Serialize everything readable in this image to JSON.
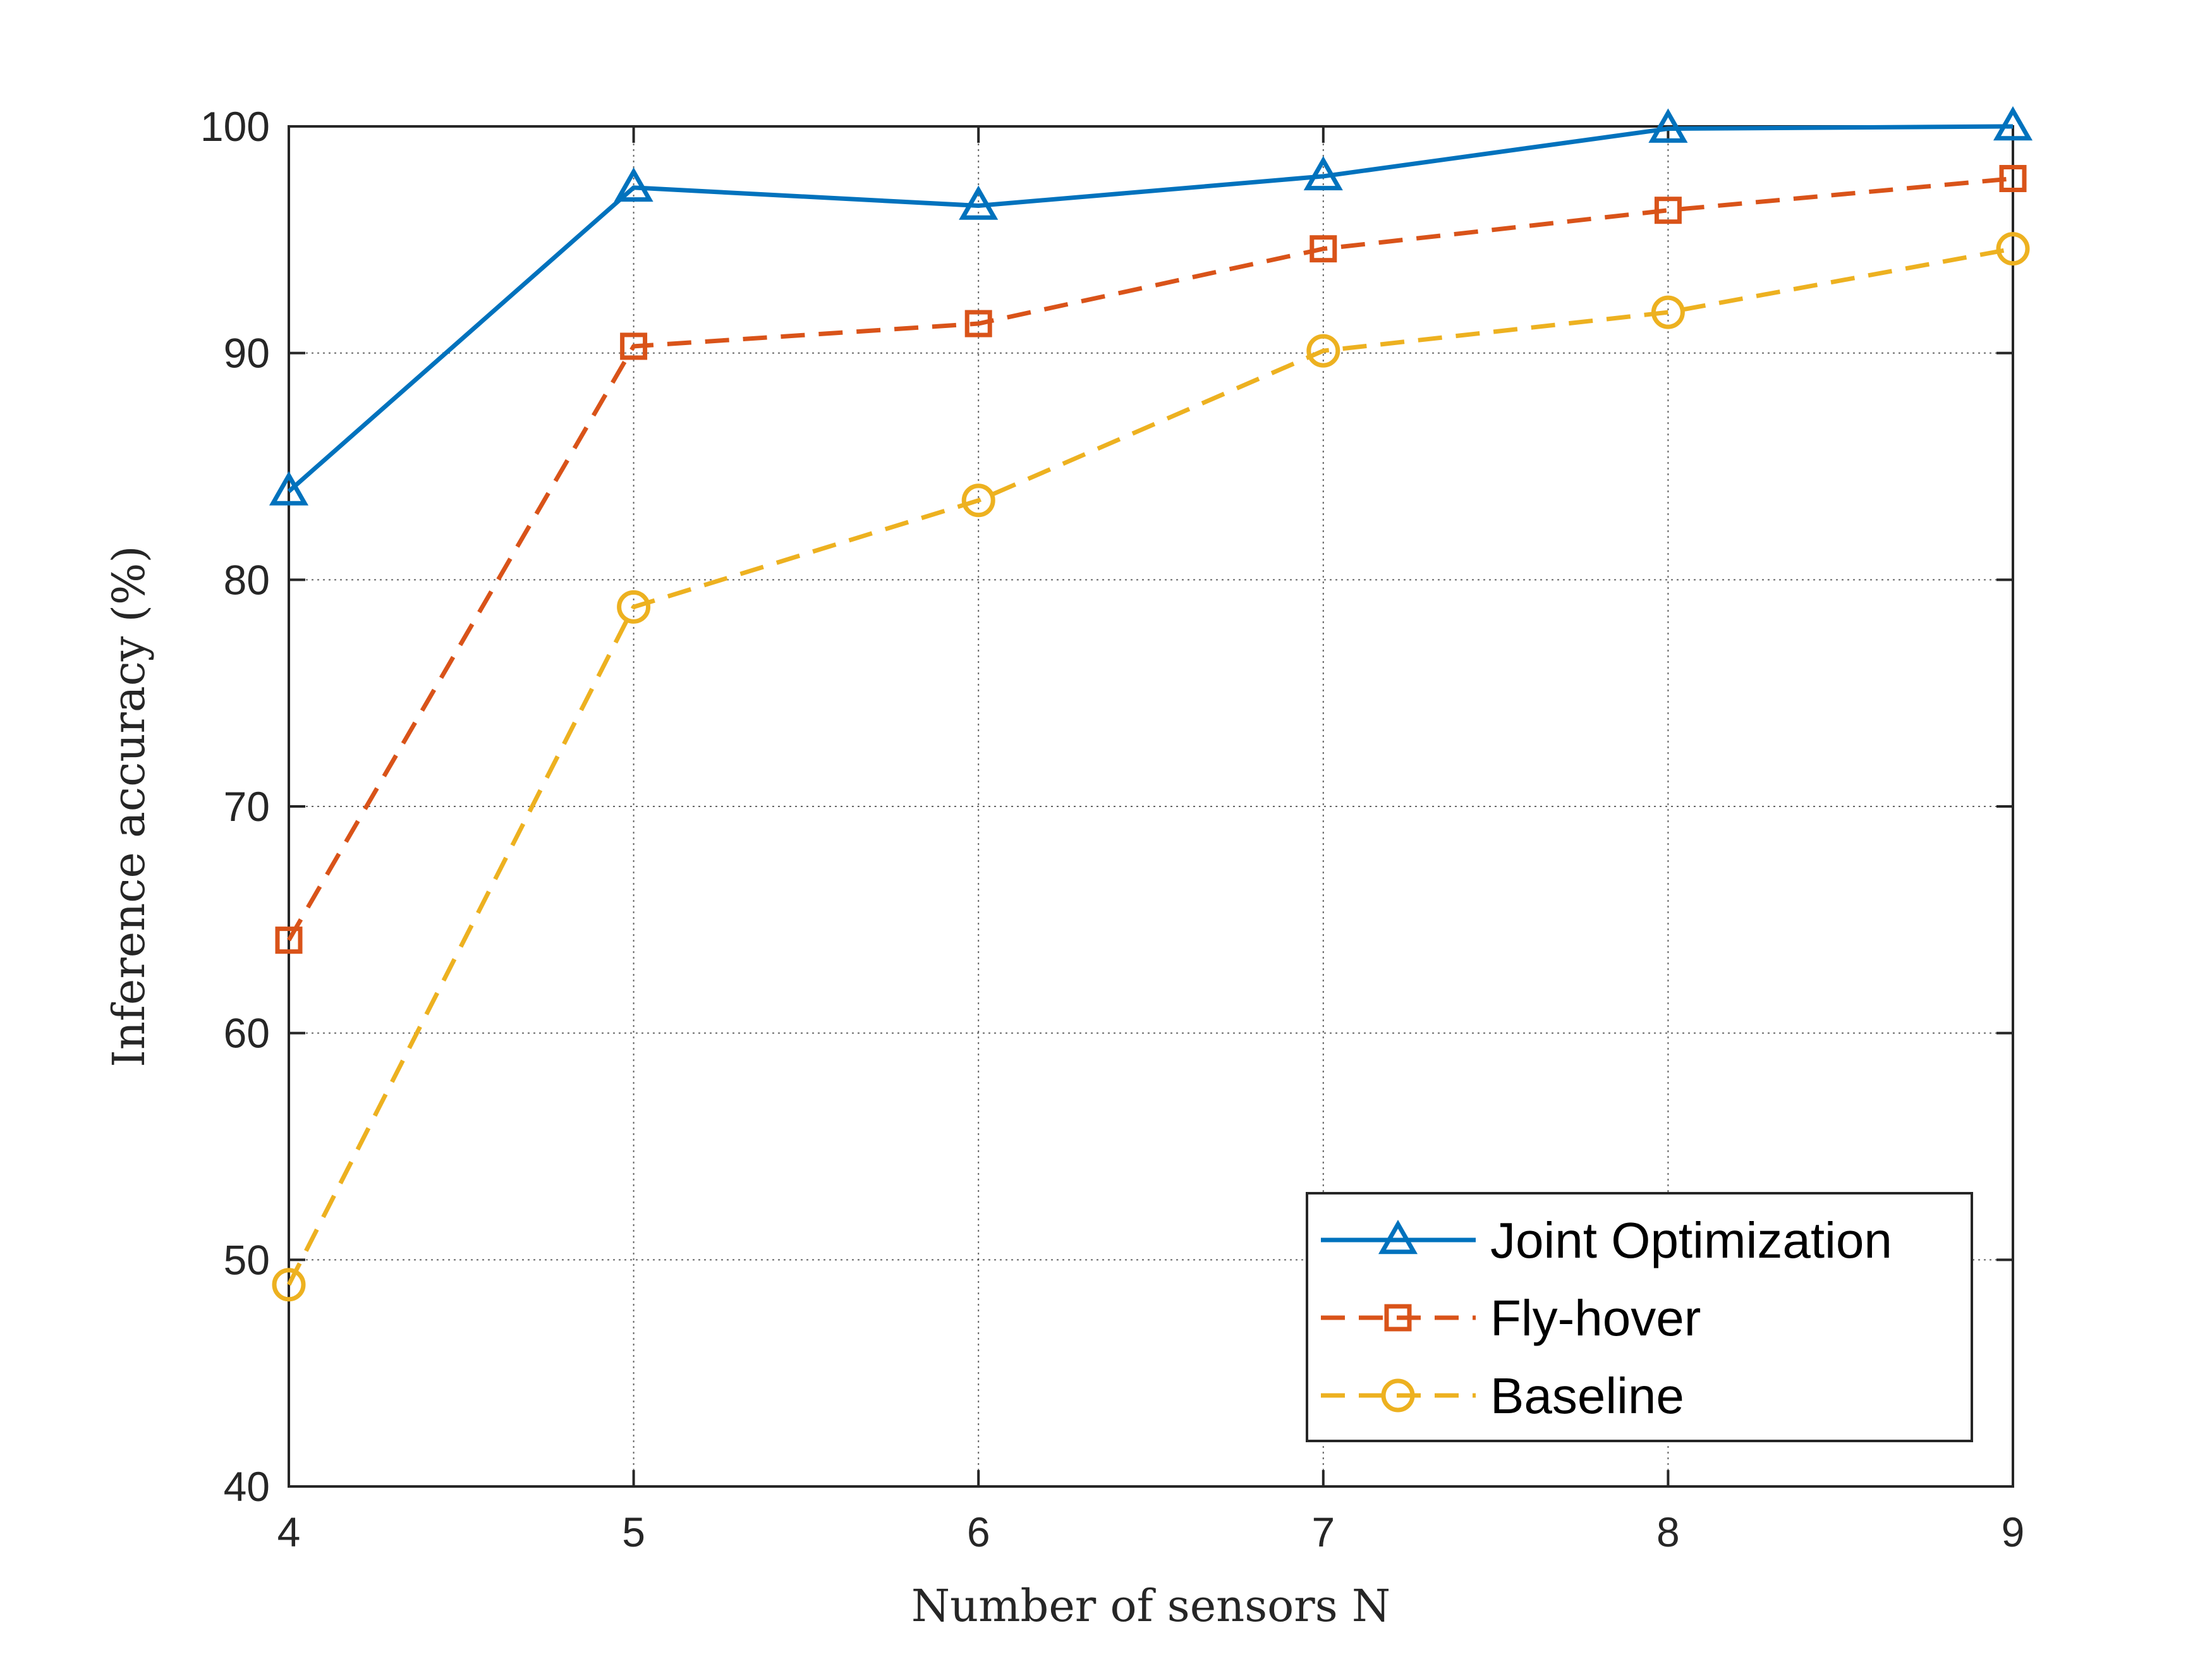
{
  "chart_data": {
    "type": "line",
    "xlabel": "Number of sensors N",
    "ylabel": "Inference accuracy (%)",
    "x": [
      4,
      5,
      6,
      7,
      8,
      9
    ],
    "xlim": [
      4,
      9
    ],
    "ylim": [
      40,
      100
    ],
    "xticks": [
      "4",
      "5",
      "6",
      "7",
      "8",
      "9"
    ],
    "yticks": [
      "40",
      "50",
      "60",
      "70",
      "80",
      "90",
      "100"
    ],
    "grid": true,
    "legend_position": "bottom-right",
    "series": [
      {
        "name": "Joint Optimization",
        "values": [
          83.9,
          97.3,
          96.5,
          97.8,
          99.9,
          100.0
        ],
        "color": "#0072BD",
        "marker": "triangle",
        "line": "solid"
      },
      {
        "name": "Fly-hover",
        "values": [
          64.1,
          90.3,
          91.3,
          94.6,
          96.3,
          97.7
        ],
        "color": "#D95319",
        "marker": "square",
        "line": "dashed"
      },
      {
        "name": "Baseline",
        "values": [
          48.9,
          78.8,
          83.5,
          90.1,
          91.8,
          94.6
        ],
        "color": "#EDB120",
        "marker": "circle",
        "line": "dashed"
      }
    ]
  }
}
